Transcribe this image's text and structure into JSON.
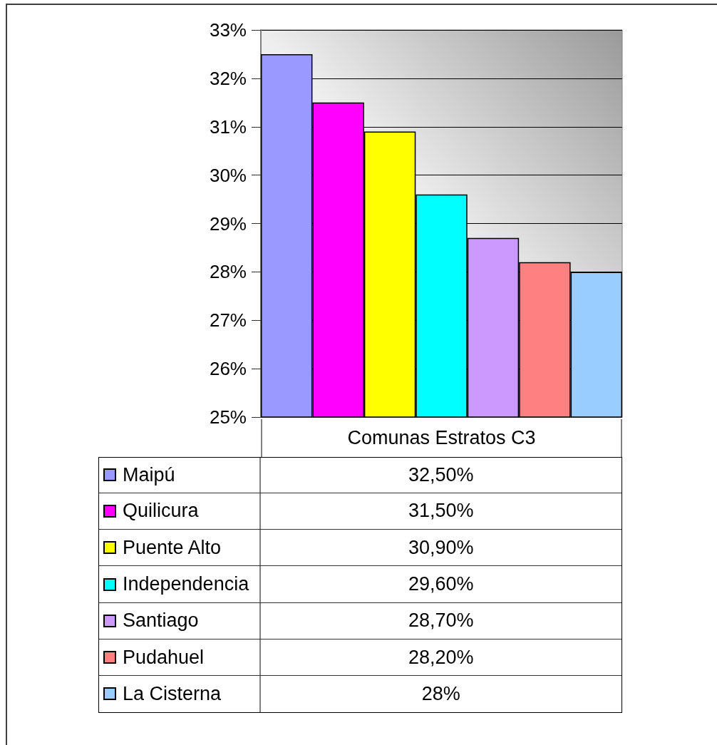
{
  "chart_data": {
    "type": "bar",
    "xlabel": "Comunas Estratos C3",
    "categories": [
      null,
      null,
      null,
      null,
      null,
      null,
      null
    ],
    "stacked": true,
    "series": [
      {
        "name": "Maipú",
        "color": "#9999ff",
        "values": [
          32.5,
          null,
          null,
          null,
          null,
          null,
          null
        ]
      },
      {
        "name": "Quilicura",
        "color": "#ff00ff",
        "values": [
          null,
          31.5,
          null,
          null,
          null,
          null,
          null
        ]
      },
      {
        "name": "Puente Alto",
        "color": "#ffff00",
        "values": [
          null,
          null,
          30.9,
          null,
          null,
          null,
          null
        ]
      },
      {
        "name": "Independencia",
        "color": "#00ffff",
        "values": [
          null,
          null,
          null,
          29.6,
          null,
          null,
          null
        ]
      },
      {
        "name": "Santiago",
        "color": "#cc99ff",
        "values": [
          null,
          null,
          null,
          null,
          28.7,
          null,
          null
        ]
      },
      {
        "name": "Pudahuel",
        "color": "#ff8080",
        "values": [
          null,
          null,
          null,
          null,
          null,
          28.2,
          null
        ]
      },
      {
        "name": "La Cisterna",
        "color": "#99ccff",
        "values": [
          null,
          null,
          null,
          null,
          null,
          null,
          28
        ]
      }
    ],
    "annotations": [
      "32,50%",
      "31,50%",
      "30,90%",
      "29,60%",
      "28,70%",
      "28,20%",
      "28%"
    ],
    "ylim": [
      25,
      33
    ],
    "yticks": [
      {
        "value": 25,
        "label": "25%"
      },
      {
        "value": 26,
        "label": "26%"
      },
      {
        "value": 27,
        "label": "27%"
      },
      {
        "value": 28,
        "label": "28%"
      },
      {
        "value": 29,
        "label": "29%"
      },
      {
        "value": 30,
        "label": "30%"
      },
      {
        "value": 31,
        "label": "31%"
      },
      {
        "value": 32,
        "label": "32%"
      },
      {
        "value": 33,
        "label": "33%"
      }
    ],
    "tick_labels": "y",
    "grid": "y",
    "legend": "bottom"
  }
}
